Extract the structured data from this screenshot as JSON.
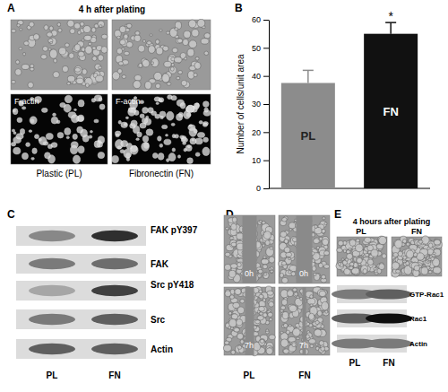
{
  "panels": {
    "A": {
      "label": "A",
      "title": "4 h after plating",
      "image_labels": [
        "F-actin",
        "F-actin"
      ],
      "captions": [
        "Plastic (PL)",
        "Fibronectin (FN)"
      ]
    },
    "B": {
      "label": "B"
    },
    "C": {
      "label": "C",
      "rows": [
        "FAK pY397",
        "FAK",
        "Src pY418",
        "Src",
        "Actin"
      ],
      "lanes": [
        "PL",
        "FN"
      ]
    },
    "D": {
      "label": "D",
      "time_labels": [
        "0h",
        "0h",
        "7h",
        "7h"
      ],
      "lanes": [
        "PL",
        "FN"
      ]
    },
    "E": {
      "label": "E",
      "title": "4 hours after plating",
      "image_labels": [
        "PL",
        "FN"
      ],
      "rows": [
        "GTP-Rac1",
        "Rac1",
        "Actin"
      ],
      "lanes": [
        "PL",
        "FN"
      ]
    }
  },
  "chart_data": {
    "type": "bar",
    "y_label": "Number of cells/unit area",
    "categories": [
      "PL",
      "FN"
    ],
    "values": [
      37.5,
      55
    ],
    "errors": [
      4.5,
      4
    ],
    "colors": [
      "#8c8c8c",
      "#111111"
    ],
    "ylim": [
      0,
      60
    ],
    "yticks": [
      0,
      10,
      20,
      30,
      40,
      50,
      60
    ],
    "tick_labels": "y",
    "annotations": [
      {
        "text": "*",
        "x": "FN"
      }
    ]
  }
}
